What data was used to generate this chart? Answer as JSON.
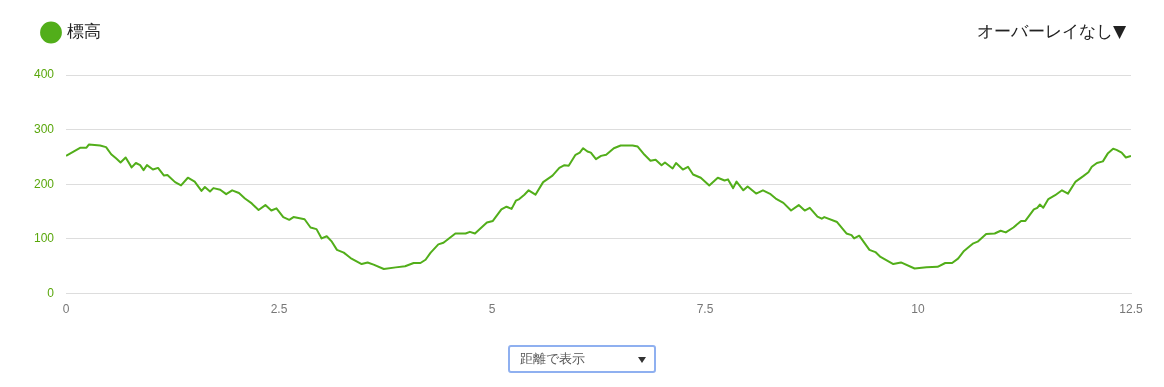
{
  "chart_data": {
    "type": "line",
    "x": [
      0,
      0.17,
      0.24,
      0.27,
      0.4,
      0.47,
      0.53,
      0.59,
      0.64,
      0.7,
      0.77,
      0.82,
      0.87,
      0.91,
      0.95,
      1.02,
      1.08,
      1.15,
      1.19,
      1.28,
      1.35,
      1.43,
      1.51,
      1.59,
      1.63,
      1.69,
      1.73,
      1.81,
      1.88,
      1.95,
      2.03,
      2.1,
      2.18,
      2.26,
      2.34,
      2.41,
      2.47,
      2.55,
      2.62,
      2.67,
      2.8,
      2.87,
      2.94,
      3,
      3.06,
      3.12,
      3.18,
      3.26,
      3.34,
      3.47,
      3.54,
      3.61,
      3.73,
      3.87,
      3.98,
      4.08,
      4.16,
      4.22,
      4.28,
      4.37,
      4.43,
      4.57,
      4.69,
      4.74,
      4.8,
      4.87,
      4.94,
      5.01,
      5.11,
      5.17,
      5.23,
      5.28,
      5.32,
      5.38,
      5.43,
      5.51,
      5.6,
      5.71,
      5.79,
      5.85,
      5.9,
      5.98,
      6.03,
      6.07,
      6.12,
      6.16,
      6.22,
      6.28,
      6.34,
      6.43,
      6.51,
      6.65,
      6.71,
      6.79,
      6.86,
      6.92,
      6.99,
      7.03,
      7.12,
      7.16,
      7.24,
      7.3,
      7.36,
      7.45,
      7.55,
      7.65,
      7.73,
      7.77,
      7.83,
      7.87,
      7.95,
      8,
      8.1,
      8.18,
      8.27,
      8.33,
      8.42,
      8.51,
      8.6,
      8.67,
      8.73,
      8.82,
      8.87,
      8.9,
      9.05,
      9.16,
      9.22,
      9.25,
      9.31,
      9.43,
      9.5,
      9.56,
      9.71,
      9.8,
      9.96,
      10.1,
      10.23,
      10.32,
      10.4,
      10.47,
      10.54,
      10.61,
      10.65,
      10.7,
      10.8,
      10.9,
      10.97,
      11.03,
      11.12,
      11.21,
      11.26,
      11.36,
      11.4,
      11.43,
      11.47,
      11.53,
      11.61,
      11.69,
      11.76,
      11.85,
      11.94,
      12,
      12.04,
      12.1,
      12.17,
      12.23,
      12.29,
      12.33,
      12.39,
      12.44,
      12.5
    ],
    "series": [
      {
        "name": "標高",
        "color": "#52ae1a",
        "values": [
          252,
          267,
          267,
          273,
          271,
          268,
          255,
          247,
          240,
          249,
          231,
          239,
          235,
          226,
          235,
          227,
          230,
          216,
          217,
          204,
          198,
          212,
          205,
          188,
          195,
          187,
          193,
          190,
          182,
          189,
          184,
          174,
          165,
          153,
          162,
          152,
          156,
          140,
          135,
          140,
          136,
          121,
          118,
          101,
          105,
          95,
          80,
          75,
          65,
          54,
          57,
          53,
          45,
          48,
          50,
          56,
          56,
          62,
          75,
          90,
          93,
          110,
          110,
          113,
          110,
          120,
          130,
          133,
          154,
          159,
          155,
          170,
          173,
          181,
          189,
          181,
          204,
          216,
          230,
          235,
          234,
          254,
          258,
          266,
          260,
          258,
          246,
          252,
          254,
          266,
          271,
          271,
          269,
          254,
          243,
          245,
          235,
          240,
          229,
          239,
          227,
          232,
          218,
          212,
          198,
          212,
          207,
          209,
          193,
          205,
          189,
          196,
          183,
          189,
          182,
          174,
          166,
          152,
          162,
          152,
          157,
          141,
          137,
          140,
          131,
          110,
          107,
          101,
          106,
          80,
          76,
          67,
          54,
          57,
          46,
          48,
          49,
          56,
          56,
          64,
          78,
          87,
          92,
          95,
          109,
          110,
          115,
          112,
          121,
          133,
          133,
          154,
          157,
          163,
          157,
          173,
          180,
          189,
          183,
          205,
          215,
          222,
          232,
          239,
          242,
          257,
          265,
          263,
          258,
          249,
          252
        ]
      }
    ],
    "xlim": [
      0,
      12.5
    ],
    "xticks": [
      0,
      2.5,
      5,
      7.5,
      10,
      12.5
    ],
    "ylim": [
      0,
      400
    ],
    "yticks": [
      0,
      100,
      200,
      300,
      400
    ],
    "grid": "y",
    "legend": "top left",
    "marker": "none",
    "line_style": "solid",
    "annotations": [
      "オーバーレイなし▼",
      "距離で表示"
    ]
  }
}
